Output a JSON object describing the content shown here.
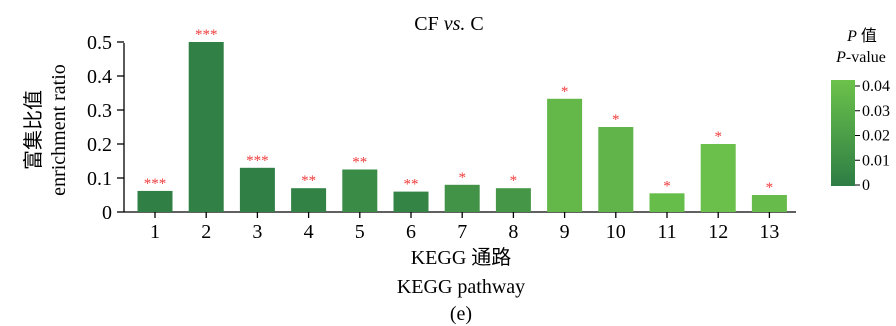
{
  "chart_data": {
    "type": "bar",
    "title": "CF vs. C",
    "title_main": "CF ",
    "title_em": "vs.",
    "title_tail": " C",
    "categories": [
      "1",
      "2",
      "3",
      "4",
      "5",
      "6",
      "7",
      "8",
      "9",
      "10",
      "11",
      "12",
      "13"
    ],
    "values": [
      0.062,
      0.5,
      0.13,
      0.07,
      0.125,
      0.06,
      0.08,
      0.07,
      0.333,
      0.25,
      0.055,
      0.2,
      0.05
    ],
    "p_values": [
      0.001,
      0.002,
      0.001,
      0.003,
      0.008,
      0.004,
      0.013,
      0.015,
      0.034,
      0.032,
      0.037,
      0.039,
      0.036
    ],
    "significance": [
      "***",
      "***",
      "***",
      "**",
      "**",
      "**",
      "*",
      "*",
      "*",
      "*",
      "*",
      "*",
      "*"
    ],
    "ylabel_cn": "富集比值",
    "ylabel_en": "enrichment ratio",
    "xlabel_cn": "KEGG 通路",
    "xlabel_en": "KEGG pathway",
    "panel_label": "(e)",
    "ylim": [
      0,
      0.5
    ],
    "yticks": [
      "0",
      "0.1",
      "0.2",
      "0.3",
      "0.4",
      "0.5"
    ],
    "grid": false,
    "legend": {
      "title_it": "P",
      "title_cn": " 值",
      "subtitle_it": "P",
      "subtitle_rest": "-value",
      "ticks": [
        "0",
        "0.01",
        "0.02",
        "0.03",
        "0.04"
      ],
      "range": [
        0,
        0.04
      ],
      "color_low": "#2e7d45",
      "color_high": "#6cc24a",
      "placement": "right"
    },
    "significance_color": "#ef3b3b"
  }
}
